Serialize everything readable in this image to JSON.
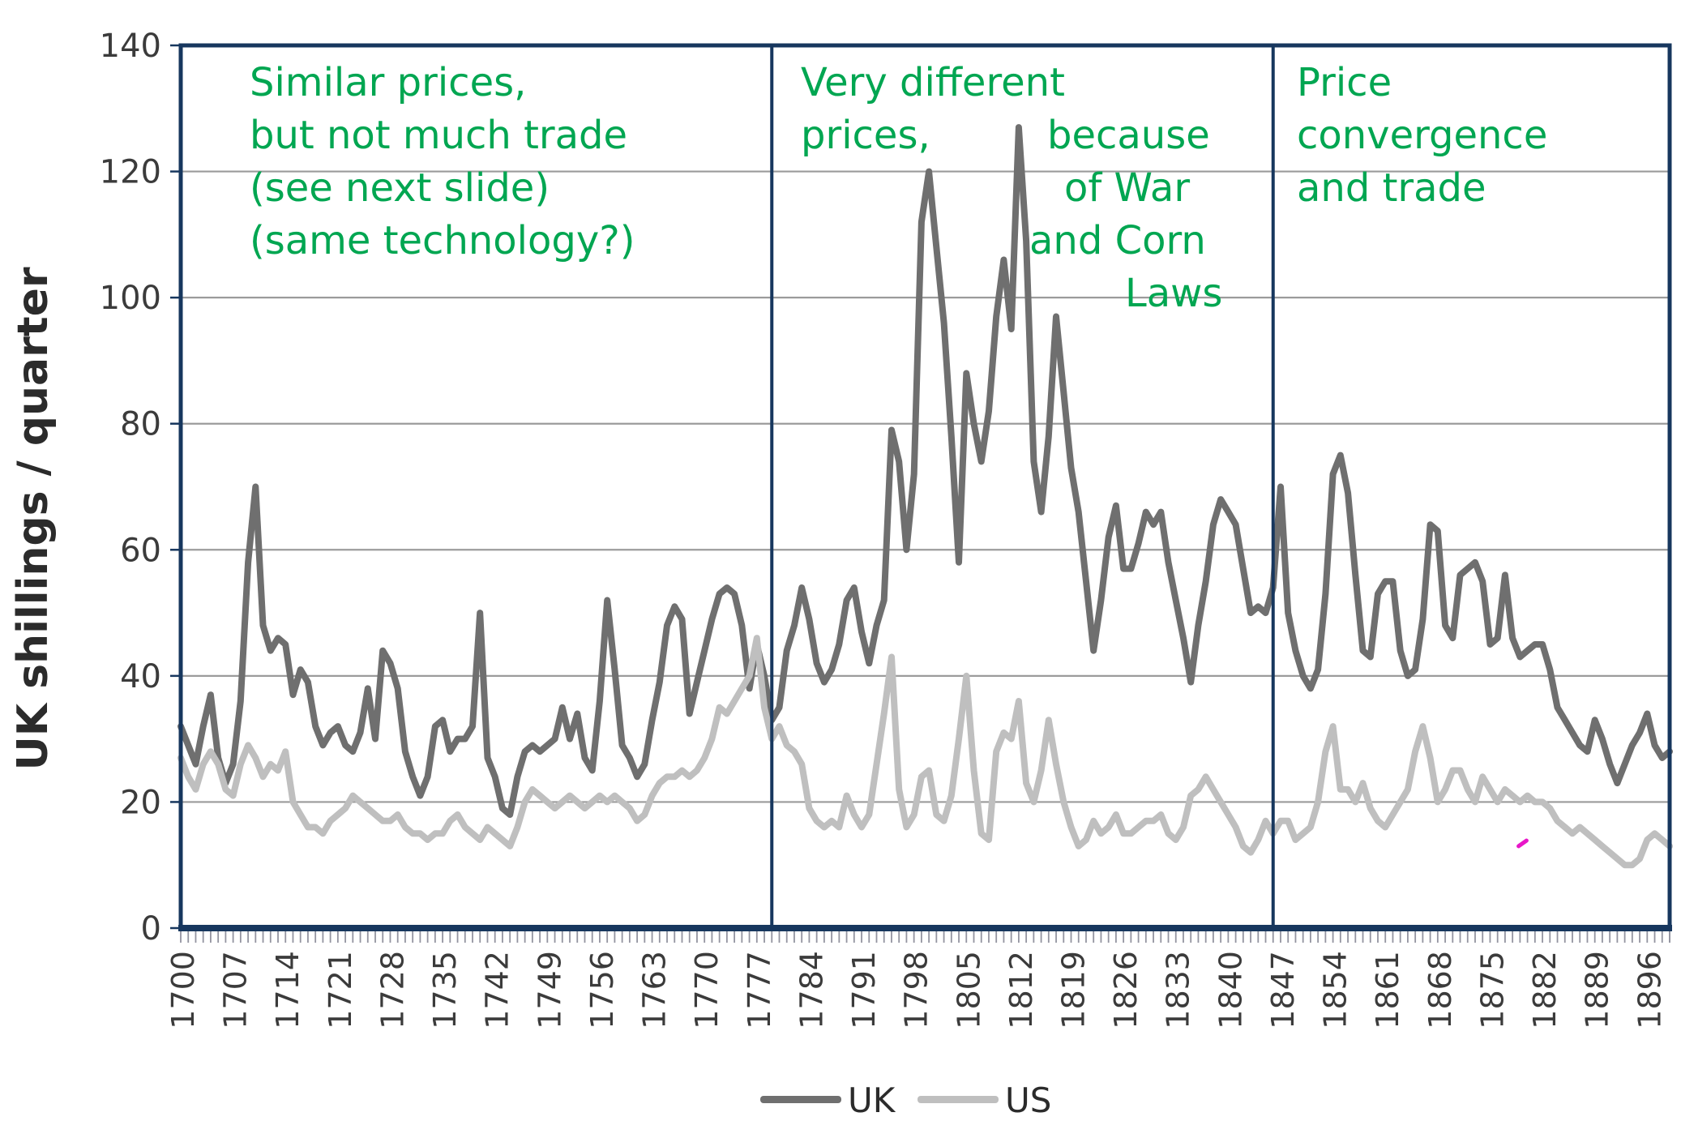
{
  "figure": {
    "background_color": "#ffffff",
    "frame_color": "#17375e",
    "grid_color": "#9b9b9b",
    "tick_color": "#9394a0",
    "label_color": "#3b3b3b",
    "annotation_color": "#00a651",
    "artifact_mark_color": "#e816c8"
  },
  "chart_data": {
    "type": "line",
    "title": "",
    "xlabel": "",
    "ylabel": "UK shillings / quarter",
    "ylim": [
      0,
      140
    ],
    "yticks": [
      0,
      20,
      40,
      60,
      80,
      100,
      120,
      140
    ],
    "grid": "horizontal",
    "x_start_year": 1700,
    "x_end_year": 1899,
    "xtick_label_years": [
      1700,
      1707,
      1714,
      1721,
      1728,
      1735,
      1742,
      1749,
      1756,
      1763,
      1770,
      1777,
      1784,
      1791,
      1798,
      1805,
      1812,
      1819,
      1826,
      1833,
      1840,
      1847,
      1854,
      1861,
      1868,
      1875,
      1882,
      1889,
      1896
    ],
    "panel_dividers_years": [
      1779,
      1846
    ],
    "legend_position": "bottom-center",
    "series": [
      {
        "name": "UK",
        "color": "#6f6f6f",
        "values": [
          32,
          29,
          26,
          32,
          37,
          27,
          23,
          26,
          36,
          58,
          70,
          48,
          44,
          46,
          45,
          37,
          41,
          39,
          32,
          29,
          31,
          32,
          29,
          28,
          31,
          38,
          30,
          44,
          42,
          38,
          28,
          24,
          21,
          24,
          32,
          33,
          28,
          30,
          30,
          32,
          50,
          27,
          24,
          19,
          18,
          24,
          28,
          29,
          28,
          29,
          30,
          35,
          30,
          34,
          27,
          25,
          36,
          52,
          41,
          29,
          27,
          24,
          26,
          33,
          39,
          48,
          51,
          49,
          34,
          39,
          44,
          49,
          53,
          54,
          53,
          48,
          38,
          45,
          40,
          33,
          35,
          44,
          48,
          54,
          49,
          42,
          39,
          41,
          45,
          52,
          54,
          47,
          42,
          48,
          52,
          79,
          74,
          60,
          72,
          112,
          120,
          108,
          96,
          78,
          58,
          88,
          80,
          74,
          82,
          97,
          106,
          95,
          127,
          109,
          74,
          66,
          78,
          97,
          85,
          73,
          66,
          55,
          44,
          52,
          62,
          67,
          57,
          57,
          61,
          66,
          64,
          66,
          58,
          52,
          46,
          39,
          48,
          55,
          64,
          68,
          66,
          64,
          57,
          50,
          51,
          50,
          54,
          70,
          50,
          44,
          40,
          38,
          41,
          53,
          72,
          75,
          69,
          56,
          44,
          43,
          53,
          55,
          55,
          44,
          40,
          41,
          49,
          64,
          63,
          48,
          46,
          56,
          57,
          58,
          55,
          45,
          46,
          56,
          46,
          43,
          44,
          45,
          45,
          41,
          35,
          33,
          31,
          29,
          28,
          33,
          30,
          26,
          23,
          26,
          29,
          31,
          34,
          29,
          27,
          28
        ]
      },
      {
        "name": "US",
        "color": "#bfbfbf",
        "values": [
          27,
          24,
          22,
          26,
          28,
          26,
          22,
          21,
          26,
          29,
          27,
          24,
          26,
          25,
          28,
          20,
          18,
          16,
          16,
          15,
          17,
          18,
          19,
          21,
          20,
          19,
          18,
          17,
          17,
          18,
          16,
          15,
          15,
          14,
          15,
          15,
          17,
          18,
          16,
          15,
          14,
          16,
          15,
          14,
          13,
          16,
          20,
          22,
          21,
          20,
          19,
          20,
          21,
          20,
          19,
          20,
          21,
          20,
          21,
          20,
          19,
          17,
          18,
          21,
          23,
          24,
          24,
          25,
          24,
          25,
          27,
          30,
          35,
          34,
          36,
          38,
          40,
          46,
          35,
          30,
          32,
          29,
          28,
          26,
          19,
          17,
          16,
          17,
          16,
          21,
          18,
          16,
          18,
          26,
          34,
          43,
          22,
          16,
          18,
          24,
          25,
          18,
          17,
          21,
          30,
          40,
          25,
          15,
          14,
          28,
          31,
          30,
          36,
          23,
          20,
          25,
          33,
          26,
          20,
          16,
          13,
          14,
          17,
          15,
          16,
          18,
          15,
          15,
          16,
          17,
          17,
          18,
          15,
          14,
          16,
          21,
          22,
          24,
          22,
          20,
          18,
          16,
          13,
          12,
          14,
          17,
          15,
          17,
          17,
          14,
          15,
          16,
          20,
          28,
          32,
          22,
          22,
          20,
          23,
          19,
          17,
          16,
          18,
          20,
          22,
          28,
          32,
          27,
          20,
          22,
          25,
          25,
          22,
          20,
          24,
          22,
          20,
          22,
          21,
          20,
          21,
          20,
          20,
          19,
          17,
          16,
          15,
          16,
          15,
          14,
          13,
          12,
          11,
          10,
          10,
          11,
          14,
          15,
          14,
          13
        ]
      }
    ],
    "annotations": [
      {
        "id": "panel1",
        "lines": [
          "Similar prices,",
          "but not much trade",
          "(see next slide)",
          "(same technology?)"
        ]
      },
      {
        "id": "panel2",
        "lines": [
          "Very different",
          "prices,",
          "because",
          "of War",
          "and Corn",
          "Laws"
        ]
      },
      {
        "id": "panel3",
        "lines": [
          "Price",
          "convergence",
          "and trade"
        ]
      }
    ]
  },
  "legend": {
    "uk_label": "UK",
    "us_label": "US"
  }
}
